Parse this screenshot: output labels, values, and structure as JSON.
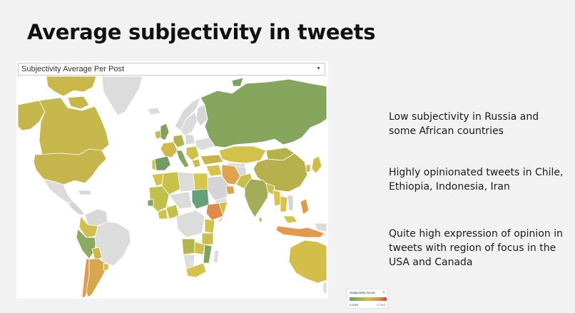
{
  "title": "Average subjectivity in tweets",
  "filter": {
    "label": "Subjectivity Average Per Post"
  },
  "legend": {
    "title": "Subjectivity Score",
    "min": "0.0000",
    "max": "0.7490",
    "colors": [
      "#6a9c68",
      "#c8c448",
      "#e08a4c",
      "#d0442e"
    ]
  },
  "notes": [
    "Low subjectivity in Russia and some African countries",
    "Highly opinionated tweets in Chile, Ethiopia, Indonesia, Iran",
    "Quite high expression of opinion in tweets with region of focus in the USA and Canada"
  ]
}
